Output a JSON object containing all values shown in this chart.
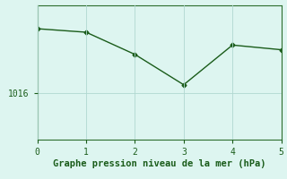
{
  "x": [
    0,
    1,
    2,
    3,
    4,
    5
  ],
  "y": [
    1021.5,
    1021.2,
    1019.3,
    1016.7,
    1020.1,
    1019.7
  ],
  "line_color": "#1a5c1a",
  "marker": "D",
  "marker_size": 2.5,
  "background_color": "#ddf5f0",
  "grid_color": "#b0d8d0",
  "xlabel": "Graphe pression niveau de la mer (hPa)",
  "xlabel_color": "#1a5c1a",
  "xlabel_fontsize": 7.5,
  "ytick_labels": [
    "1016"
  ],
  "ytick_values": [
    1016
  ],
  "xlim": [
    0,
    5
  ],
  "ylim": [
    1012.0,
    1023.5
  ],
  "tick_color": "#1a5c1a",
  "spine_color": "#2d6e2d",
  "line_width": 1.0
}
